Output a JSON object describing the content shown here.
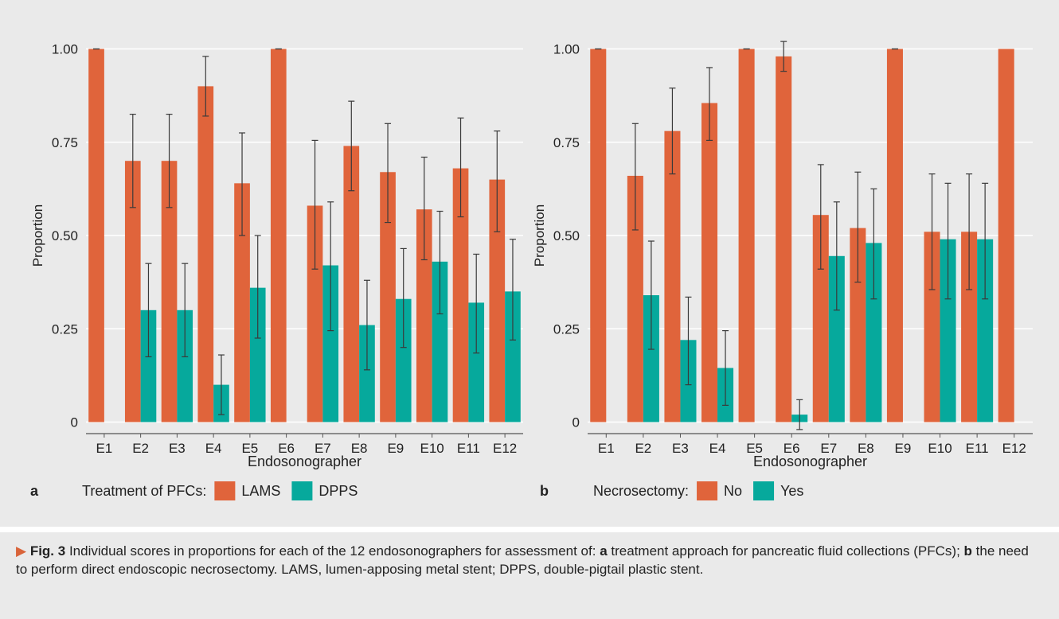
{
  "colors": {
    "background": "#eaeaea",
    "gridline": "#ffffff",
    "orange": "#e0643b",
    "teal": "#06a99c",
    "error_bar": "#3a3a3a",
    "text": "#222222"
  },
  "caption": {
    "marker": "▶",
    "fig_label": "Fig. 3",
    "lead": "Individual scores in proportions for each of the 12 endosonographers for assessment of:",
    "a_label": "a",
    "a_text": "treatment approach for pancreatic fluid collections (PFCs);",
    "b_label": "b",
    "b_text": "the need to perform direct endoscopic necrosectomy. LAMS, lumen-apposing metal stent; DPPS, double-pigtail plastic stent."
  },
  "chart_data": [
    {
      "type": "bar",
      "panel_label": "a",
      "xlabel": "Endosonographer",
      "ylabel": "Proportion",
      "ylim": [
        0,
        1
      ],
      "yticks": [
        0,
        0.25,
        0.5,
        0.75,
        1.0
      ],
      "ytick_labels": [
        "0",
        "0.25",
        "0.50",
        "0.75",
        "1.00"
      ],
      "grid": true,
      "legend_title": "Treatment of PFCs:",
      "legend_position": "bottom",
      "categories": [
        "E1",
        "E2",
        "E3",
        "E4",
        "E5",
        "E6",
        "E7",
        "E8",
        "E9",
        "E10",
        "E11",
        "E12"
      ],
      "series": [
        {
          "name": "LAMS",
          "color": "#e0643b",
          "values": [
            1.0,
            0.7,
            0.7,
            0.9,
            0.64,
            1.0,
            0.58,
            0.74,
            0.67,
            0.57,
            0.68,
            0.65
          ],
          "ci_low": [
            1.0,
            0.575,
            0.575,
            0.82,
            0.5,
            1.0,
            0.41,
            0.62,
            0.535,
            0.435,
            0.55,
            0.51
          ],
          "ci_high": [
            1.0,
            0.825,
            0.825,
            0.98,
            0.775,
            1.0,
            0.755,
            0.86,
            0.8,
            0.71,
            0.815,
            0.78
          ]
        },
        {
          "name": "DPPS",
          "color": "#06a99c",
          "values": [
            0,
            0.3,
            0.3,
            0.1,
            0.36,
            0,
            0.42,
            0.26,
            0.33,
            0.43,
            0.32,
            0.35
          ],
          "ci_low": [
            null,
            0.175,
            0.175,
            0.02,
            0.225,
            null,
            0.245,
            0.14,
            0.2,
            0.29,
            0.185,
            0.22
          ],
          "ci_high": [
            null,
            0.425,
            0.425,
            0.18,
            0.5,
            null,
            0.59,
            0.38,
            0.465,
            0.565,
            0.45,
            0.49
          ]
        }
      ]
    },
    {
      "type": "bar",
      "panel_label": "b",
      "xlabel": "Endosonographer",
      "ylabel": "Proportion",
      "ylim": [
        0,
        1
      ],
      "yticks": [
        0,
        0.25,
        0.5,
        0.75,
        1.0
      ],
      "ytick_labels": [
        "0",
        "0.25",
        "0.50",
        "0.75",
        "1.00"
      ],
      "grid": true,
      "legend_title": "Necrosectomy:",
      "legend_position": "bottom",
      "categories": [
        "E1",
        "E2",
        "E3",
        "E4",
        "E5",
        "E6",
        "E7",
        "E8",
        "E9",
        "E10",
        "E11",
        "E12"
      ],
      "series": [
        {
          "name": "No",
          "color": "#e0643b",
          "values": [
            1.0,
            0.66,
            0.78,
            0.855,
            1.0,
            0.98,
            0.555,
            0.52,
            1.0,
            0.51,
            0.51,
            1.0
          ],
          "ci_low": [
            1.0,
            0.515,
            0.665,
            0.755,
            1.0,
            0.94,
            0.41,
            0.375,
            1.0,
            0.355,
            0.355,
            null
          ],
          "ci_high": [
            1.0,
            0.8,
            0.895,
            0.95,
            1.0,
            1.02,
            0.69,
            0.67,
            1.0,
            0.665,
            0.665,
            null
          ]
        },
        {
          "name": "Yes",
          "color": "#06a99c",
          "values": [
            0,
            0.34,
            0.22,
            0.145,
            0,
            0.02,
            0.445,
            0.48,
            0,
            0.49,
            0.49,
            0
          ],
          "ci_low": [
            null,
            0.195,
            0.1,
            0.045,
            null,
            -0.02,
            0.3,
            0.33,
            null,
            0.33,
            0.33,
            null
          ],
          "ci_high": [
            null,
            0.485,
            0.335,
            0.245,
            null,
            0.06,
            0.59,
            0.625,
            null,
            0.64,
            0.64,
            null
          ]
        }
      ]
    }
  ]
}
